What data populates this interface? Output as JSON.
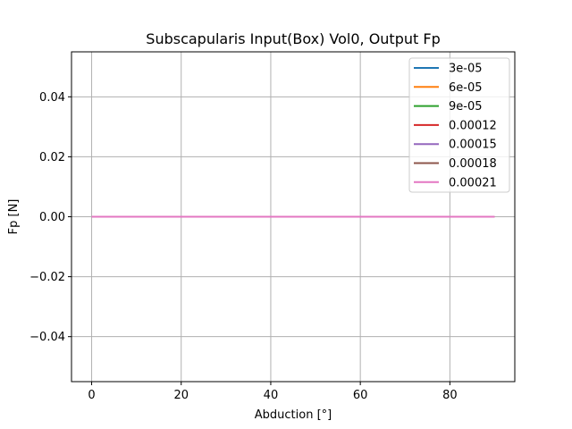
{
  "chart_data": {
    "type": "line",
    "title": "Subscapularis Input(Box) Vol0, Output Fp",
    "xlabel": "Abduction [°]",
    "ylabel": "Fp [N]",
    "xlim": [
      -4.5,
      94.5
    ],
    "ylim": [
      -0.055,
      0.055
    ],
    "x_ticks": [
      0,
      20,
      40,
      60,
      80
    ],
    "x_tick_labels": [
      "0",
      "20",
      "40",
      "60",
      "80"
    ],
    "y_ticks": [
      -0.04,
      -0.02,
      0.0,
      0.02,
      0.04
    ],
    "y_tick_labels": [
      "−0.04",
      "−0.02",
      "0.00",
      "0.02",
      "0.04"
    ],
    "grid": true,
    "legend_position": "top-right",
    "x": [
      0,
      90
    ],
    "series": [
      {
        "name": "3e-05",
        "color": "#1f77b4",
        "values": [
          0,
          0
        ]
      },
      {
        "name": "6e-05",
        "color": "#ff7f0e",
        "values": [
          0,
          0
        ]
      },
      {
        "name": "9e-05",
        "color": "#2ca02c",
        "values": [
          0,
          0
        ]
      },
      {
        "name": "0.00012",
        "color": "#d62728",
        "values": [
          0,
          0
        ]
      },
      {
        "name": "0.00015",
        "color": "#9467bd",
        "values": [
          0,
          0
        ]
      },
      {
        "name": "0.00018",
        "color": "#8c564b",
        "values": [
          0,
          0
        ]
      },
      {
        "name": "0.00021",
        "color": "#e377c2",
        "values": [
          0,
          0
        ]
      }
    ]
  }
}
